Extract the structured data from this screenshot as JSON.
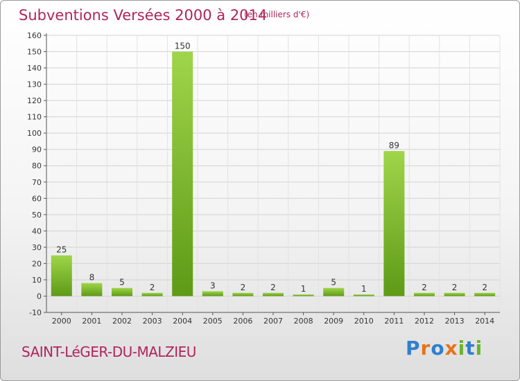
{
  "title": "Subventions Versées 2000 à 2014",
  "unit": "(en milliers d'€)",
  "commune": "SAINT-LéGER-DU-MALZIEU",
  "logo": {
    "text": "Proxiti",
    "letters": [
      {
        "ch": "P",
        "color": "#2f7fd0"
      },
      {
        "ch": "r",
        "color": "#e8731a"
      },
      {
        "ch": "o",
        "color": "#2f7fd0"
      },
      {
        "ch": "x",
        "color": "#e8731a"
      },
      {
        "ch": "i",
        "color": "#69b42c"
      },
      {
        "ch": "t",
        "color": "#2f7fd0"
      },
      {
        "ch": "i",
        "color": "#69b42c"
      }
    ]
  },
  "chart_data": {
    "type": "bar",
    "categories": [
      "2000",
      "2001",
      "2002",
      "2003",
      "2004",
      "2005",
      "2006",
      "2007",
      "2008",
      "2009",
      "2010",
      "2011",
      "2012",
      "2013",
      "2014"
    ],
    "values": [
      25,
      8,
      5,
      2,
      150,
      3,
      2,
      2,
      1,
      5,
      1,
      89,
      2,
      2,
      2
    ],
    "data_labels": [
      "25",
      "8",
      "5",
      "2",
      "150",
      "3",
      "2",
      "2",
      "1",
      "5",
      "1",
      "89",
      "2",
      "2",
      "2"
    ],
    "title": "Subventions Versées 2000 à 2014",
    "xlabel": "",
    "ylabel": "",
    "ylim": [
      -10,
      160
    ],
    "yticks": [
      -10,
      0,
      10,
      20,
      30,
      40,
      50,
      60,
      70,
      80,
      90,
      100,
      110,
      120,
      130,
      140,
      150,
      160
    ],
    "grid": true,
    "legend": "none",
    "bar_color": "#7cb82f"
  }
}
